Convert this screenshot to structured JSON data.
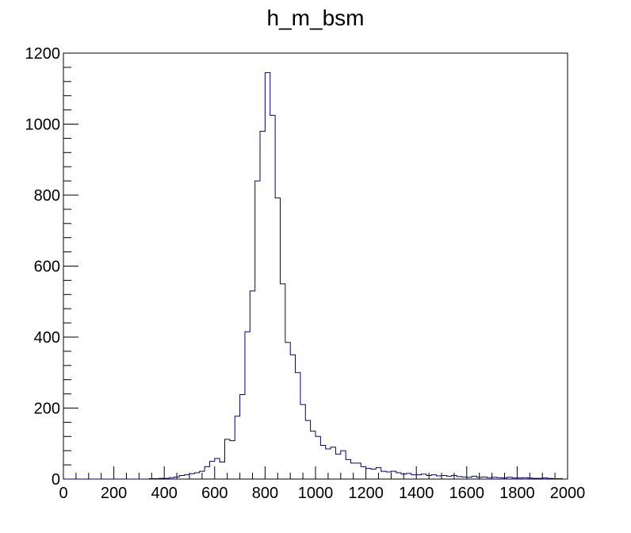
{
  "chart_data": {
    "type": "histogram",
    "title": "h_m_bsm",
    "xlabel": "",
    "ylabel": "",
    "xlim": [
      0,
      2000
    ],
    "ylim": [
      0,
      1200
    ],
    "bin_width": 20,
    "bins_start": 0,
    "x_ticks": [
      0,
      200,
      400,
      600,
      800,
      1000,
      1200,
      1400,
      1600,
      1800,
      2000
    ],
    "y_ticks": [
      0,
      200,
      400,
      600,
      800,
      1000,
      1200
    ],
    "line_color": "#000080",
    "frame_color": "#000000",
    "values": [
      0,
      0,
      0,
      0,
      0,
      0,
      0,
      0,
      0,
      0,
      0,
      0,
      0,
      0,
      0,
      0,
      0,
      1,
      1,
      2,
      2,
      4,
      6,
      10,
      12,
      15,
      18,
      22,
      35,
      50,
      58,
      48,
      112,
      108,
      177,
      238,
      415,
      530,
      840,
      980,
      1145,
      1025,
      792,
      550,
      385,
      350,
      300,
      210,
      165,
      135,
      120,
      95,
      85,
      90,
      70,
      80,
      55,
      45,
      45,
      35,
      30,
      28,
      32,
      22,
      20,
      22,
      18,
      14,
      16,
      12,
      12,
      14,
      10,
      12,
      9,
      10,
      8,
      10,
      7,
      6,
      5,
      8,
      5,
      6,
      4,
      5,
      4,
      3,
      5,
      3,
      3,
      4,
      3,
      2,
      2,
      3,
      2,
      1,
      1,
      0
    ]
  }
}
